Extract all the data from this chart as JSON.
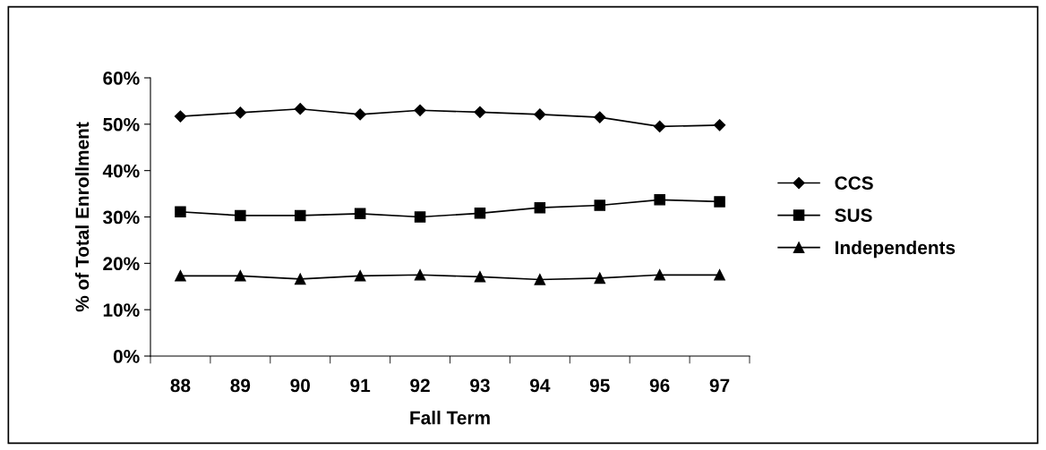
{
  "chart_data": {
    "type": "line",
    "xlabel": "Fall Term",
    "ylabel": "% of Total Enrollment",
    "categories": [
      "88",
      "89",
      "90",
      "91",
      "92",
      "93",
      "94",
      "95",
      "96",
      "97"
    ],
    "series": [
      {
        "name": "CCS",
        "color": "#000000",
        "marker": "diamond",
        "values": [
          51.7,
          52.5,
          53.3,
          52.1,
          53.0,
          52.6,
          52.1,
          51.5,
          49.5,
          49.8
        ]
      },
      {
        "name": "SUS",
        "color": "#000000",
        "marker": "square",
        "values": [
          31.1,
          30.3,
          30.3,
          30.7,
          30.0,
          30.8,
          32.0,
          32.5,
          33.7,
          33.3
        ]
      },
      {
        "name": "Independents",
        "color": "#000000",
        "marker": "triangle",
        "values": [
          17.3,
          17.3,
          16.6,
          17.3,
          17.5,
          17.1,
          16.5,
          16.8,
          17.5,
          17.5
        ]
      }
    ],
    "ylim": [
      0,
      60
    ],
    "yticks": [
      {
        "value": 0,
        "label": "0%"
      },
      {
        "value": 10,
        "label": "10%"
      },
      {
        "value": 20,
        "label": "20%"
      },
      {
        "value": 30,
        "label": "30%"
      },
      {
        "value": 40,
        "label": "40%"
      },
      {
        "value": 50,
        "label": "50%"
      },
      {
        "value": 60,
        "label": "60%"
      }
    ],
    "grid": false,
    "legend": "right",
    "line_style": "solid"
  }
}
